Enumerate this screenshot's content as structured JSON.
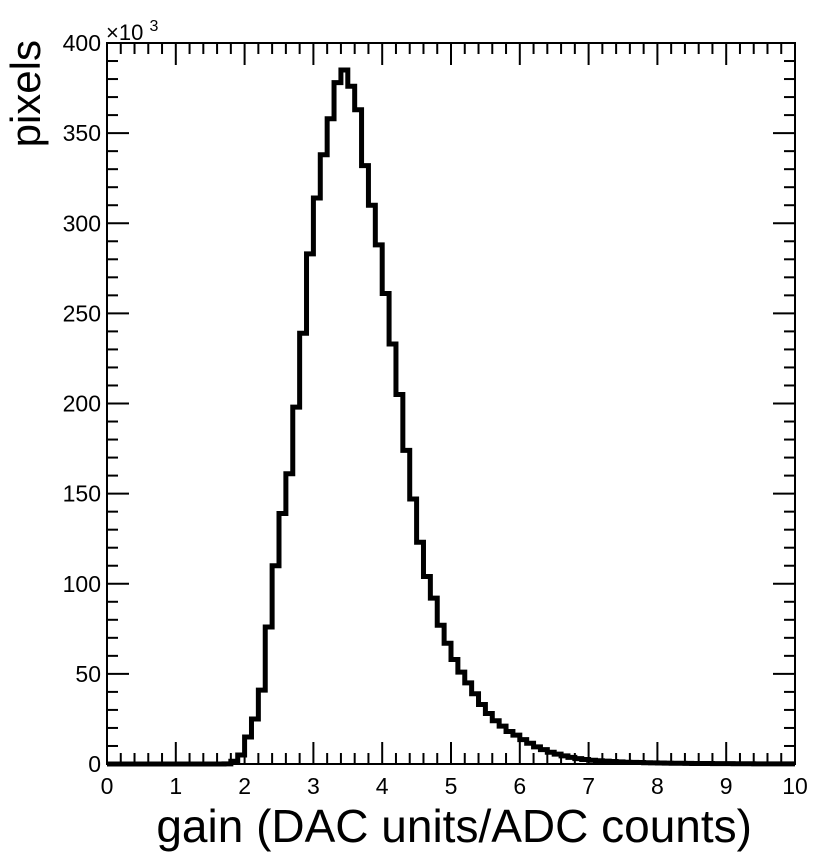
{
  "chart_data": {
    "type": "bar",
    "style": "step-histogram",
    "xlabel": "gain (DAC units/ADC counts)",
    "ylabel": "pixels",
    "y_multiplier_base": "×10",
    "y_multiplier_exp": "3",
    "xlim": [
      0,
      10
    ],
    "ylim": [
      0,
      400
    ],
    "x_ticks": [
      "0",
      "1",
      "2",
      "3",
      "4",
      "5",
      "6",
      "7",
      "8",
      "9",
      "10"
    ],
    "y_ticks": [
      "0",
      "50",
      "100",
      "150",
      "200",
      "250",
      "300",
      "350",
      "400"
    ],
    "bin_width": 0.1,
    "x_start": 0,
    "values": [
      0,
      0,
      0,
      0,
      0,
      0,
      0,
      0,
      0,
      0,
      0,
      0,
      0,
      0,
      0,
      0,
      0,
      0.1,
      1.5,
      5,
      15,
      25,
      41,
      76,
      110,
      139,
      161,
      198,
      239,
      283,
      314,
      338,
      358,
      378,
      385,
      376,
      363,
      332,
      310,
      288,
      261,
      233,
      205,
      174,
      147,
      123,
      104,
      92,
      77,
      67,
      58,
      51,
      45,
      39,
      33,
      28,
      24,
      21,
      18,
      16,
      13.5,
      11.5,
      9.5,
      8,
      6.5,
      5.5,
      4.5,
      3.7,
      3,
      2.5,
      2.1,
      1.8,
      1.6,
      1.4,
      1.2,
      1,
      0.9,
      0.8,
      0.7,
      0.6,
      0.55,
      0.5,
      0.45,
      0.4,
      0.35,
      0.3,
      0.28,
      0.25,
      0.22,
      0.2,
      0.18,
      0.16,
      0.14,
      0.12,
      0.1,
      0.09,
      0.08,
      0.07,
      0.06,
      0.05
    ],
    "grid": false,
    "legend": "none",
    "line_color": "#000000",
    "axis_color": "#000000"
  }
}
